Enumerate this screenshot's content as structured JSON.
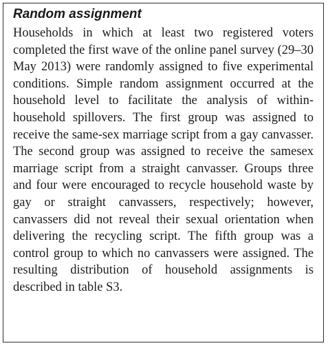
{
  "section": {
    "title": "Random assignment",
    "paragraph": "Households in which at least two registered voters completed the first wave of the online panel survey (29–30 May 2013) were randomly assigned to five experimental conditions. Simple random assignment occurred at the household level to facilitate the analysis of within-household spillovers. The first group was assigned to receive the same-sex marriage script from a gay canvasser. The second group was assigned to receive the same­sex marriage script from a straight canvasser. Groups three and four were encouraged to recycle house­hold waste by gay or straight canvassers, respec­tively; however, canvassers did not reveal their sexual orientation when delivering the recycling script. The fifth group was a control group to which no canvassers were assigned. The resulting distribu­tion of household assignments is described in table S3."
  }
}
